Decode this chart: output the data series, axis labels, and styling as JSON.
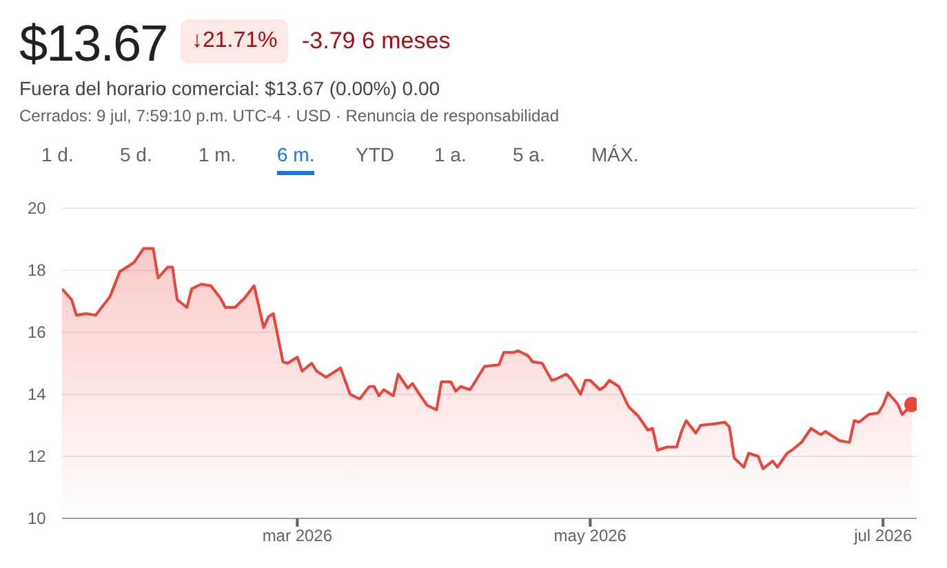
{
  "chart_data": {
    "type": "area",
    "title": "$13.67",
    "subtitle": "Fuera del horario comercial: $13.67 (0.00%) 0.00",
    "annotations": [
      "↓21.71%",
      "-3.79 6 meses",
      "Cerrados: 9 jul, 7:59:10 p.m. UTC-4 · USD · Renuncia de responsabilidad",
      "1 d.",
      "5 d.",
      "1 m.",
      "6 m.",
      "YTD",
      "1 a.",
      "5 a.",
      "MÁX."
    ],
    "series": [
      {
        "color": "#e8453c",
        "x": [
          "2026-01-11",
          "2026-01-13",
          "2026-01-14",
          "2026-01-16",
          "2026-01-18",
          "2026-01-20",
          "2026-01-21",
          "2026-01-23",
          "2026-01-24",
          "2026-01-26",
          "2026-01-28",
          "2026-01-30",
          "2026-01-31",
          "2026-02-02",
          "2026-02-03",
          "2026-02-04",
          "2026-02-06",
          "2026-02-07",
          "2026-02-09",
          "2026-02-11",
          "2026-02-13",
          "2026-02-14",
          "2026-02-16",
          "2026-02-18",
          "2026-02-19",
          "2026-02-20",
          "2026-02-22",
          "2026-02-23",
          "2026-02-24",
          "2026-02-26",
          "2026-02-27",
          "2026-03-01",
          "2026-03-02",
          "2026-03-04",
          "2026-03-05",
          "2026-03-07",
          "2026-03-10",
          "2026-03-12",
          "2026-03-14",
          "2026-03-16",
          "2026-03-17",
          "2026-03-18",
          "2026-03-19",
          "2026-03-21",
          "2026-03-22",
          "2026-03-24",
          "2026-03-25",
          "2026-03-26",
          "2026-03-28",
          "2026-03-30",
          "2026-03-31",
          "2026-04-02",
          "2026-04-03",
          "2026-04-04",
          "2026-04-06",
          "2026-04-08",
          "2026-04-09",
          "2026-04-12",
          "2026-04-13",
          "2026-04-15",
          "2026-04-16",
          "2026-04-18",
          "2026-04-19",
          "2026-04-21",
          "2026-04-23",
          "2026-04-24",
          "2026-04-26",
          "2026-04-27",
          "2026-04-29",
          "2026-04-30",
          "2026-05-01",
          "2026-05-03",
          "2026-05-04",
          "2026-05-05",
          "2026-05-07",
          "2026-05-09",
          "2026-05-11",
          "2026-05-13",
          "2026-05-14",
          "2026-05-15",
          "2026-05-17",
          "2026-05-19",
          "2026-05-20",
          "2026-05-21",
          "2026-05-23",
          "2026-05-24",
          "2026-05-27",
          "2026-05-29",
          "2026-05-30",
          "2026-05-31",
          "2026-06-02",
          "2026-06-03",
          "2026-06-05",
          "2026-06-06",
          "2026-06-08",
          "2026-06-09",
          "2026-06-11",
          "2026-06-12",
          "2026-06-14",
          "2026-06-16",
          "2026-06-18",
          "2026-06-19",
          "2026-06-22",
          "2026-06-24",
          "2026-06-25",
          "2026-06-26",
          "2026-06-28",
          "2026-06-30",
          "2026-07-01",
          "2026-07-02",
          "2026-07-04",
          "2026-07-05",
          "2026-07-07"
        ],
        "values": [
          17.4,
          17.05,
          16.55,
          16.6,
          16.55,
          16.95,
          17.15,
          17.95,
          18.05,
          18.25,
          18.7,
          18.7,
          17.75,
          18.1,
          18.1,
          17.05,
          16.8,
          17.4,
          17.55,
          17.5,
          17.1,
          16.8,
          16.8,
          17.1,
          17.3,
          17.5,
          16.15,
          16.5,
          16.6,
          15.05,
          15.0,
          15.2,
          14.75,
          15.0,
          14.75,
          14.55,
          14.85,
          14.0,
          13.85,
          14.25,
          14.25,
          13.95,
          14.15,
          13.95,
          14.65,
          14.2,
          14.35,
          14.1,
          13.65,
          13.5,
          14.4,
          14.4,
          14.1,
          14.25,
          14.15,
          14.65,
          14.9,
          14.95,
          15.35,
          15.35,
          15.4,
          15.25,
          15.05,
          15.0,
          14.45,
          14.5,
          14.65,
          14.5,
          14.0,
          14.45,
          14.45,
          14.15,
          14.25,
          14.45,
          14.25,
          13.6,
          13.3,
          12.85,
          12.9,
          12.2,
          12.3,
          12.3,
          12.8,
          13.15,
          12.75,
          13.0,
          13.05,
          13.1,
          12.95,
          11.95,
          11.65,
          12.1,
          12.0,
          11.6,
          11.85,
          11.65,
          12.1,
          12.2,
          12.45,
          12.9,
          12.7,
          12.8,
          12.5,
          12.45,
          13.15,
          13.1,
          13.35,
          13.4,
          13.65,
          14.05,
          13.7,
          13.35,
          13.67
        ]
      },
      {
        "type": "scatter",
        "color": "#e8453c",
        "marker": "circle",
        "x": [
          "2026-07-07"
        ],
        "values": [
          13.67
        ]
      }
    ],
    "xlim": [
      "2026-01-11",
      "2026-07-08"
    ],
    "xticks": [
      {
        "value": "2026-03-01",
        "label": "mar 2026"
      },
      {
        "value": "2026-05-01",
        "label": "may 2026"
      },
      {
        "value": "2026-07-01",
        "label": "jul 2026"
      }
    ],
    "ylim": [
      10,
      20
    ],
    "yticks": [
      10,
      12,
      14,
      16,
      18,
      20
    ],
    "grid": "y",
    "marker": "none"
  }
}
